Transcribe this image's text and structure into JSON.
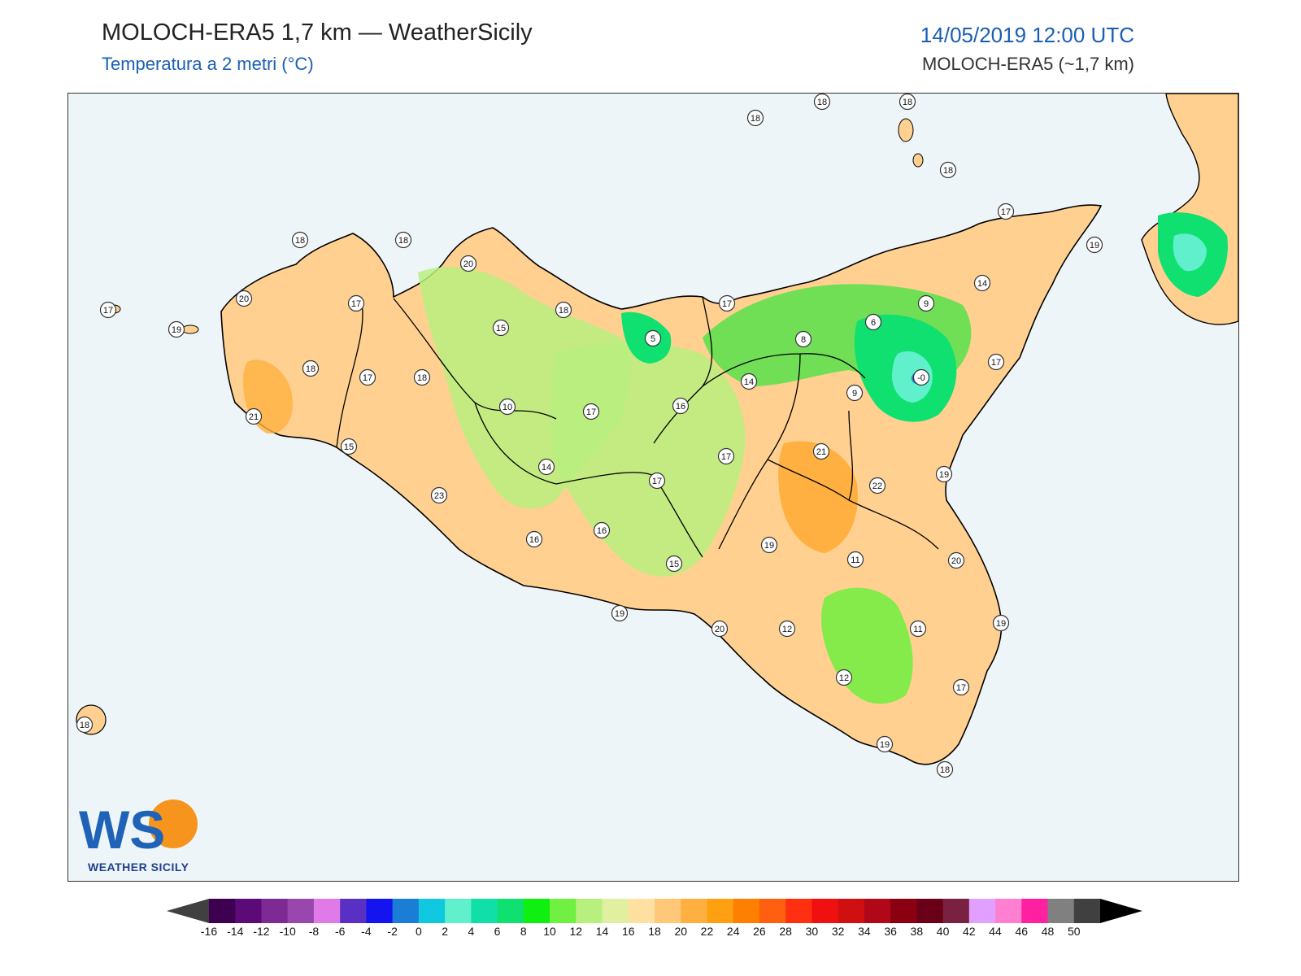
{
  "header": {
    "title": "MOLOCH-ERA5 1,7 km — WeatherSicily",
    "subtitle": "Temperatura a 2 metri (°C)",
    "datetime": "14/05/2019 12:00 UTC",
    "model": "MOLOCH-ERA5 (~1,7 km)"
  },
  "logo": {
    "letters": "WS",
    "name": "WEATHER SICILY"
  },
  "colorbar": {
    "ticks": [
      "-16",
      "-14",
      "-12",
      "-10",
      "-8",
      "-6",
      "-4",
      "-2",
      "0",
      "2",
      "4",
      "6",
      "8",
      "10",
      "12",
      "14",
      "16",
      "18",
      "20",
      "22",
      "24",
      "26",
      "28",
      "30",
      "32",
      "34",
      "36",
      "38",
      "40",
      "42",
      "44",
      "46",
      "48",
      "50"
    ],
    "colors": [
      "#3d0050",
      "#5c0a78",
      "#7d2a94",
      "#9a47ad",
      "#e07ae6",
      "#5a2fc4",
      "#1414f0",
      "#1a7ed6",
      "#10c8e0",
      "#60f0cc",
      "#10e0a8",
      "#10e070",
      "#10f010",
      "#70f040",
      "#b8f080",
      "#e0f0a0",
      "#ffe0a0",
      "#ffc878",
      "#ffb040",
      "#ffa010",
      "#ff8000",
      "#ff6010",
      "#ff3010",
      "#f01010",
      "#d01010",
      "#b00818",
      "#8a0010",
      "#6a0018",
      "#7a2040",
      "#e0a0ff",
      "#ff80d0",
      "#ff20a0",
      "#808080",
      "#404040"
    ],
    "under_color": "#404040",
    "over_color": "#000000"
  },
  "stations": [
    {
      "label": "18"
    },
    {
      "label": "18"
    },
    {
      "label": "18"
    },
    {
      "label": "18"
    },
    {
      "label": "17"
    },
    {
      "label": "19"
    },
    {
      "label": "17"
    },
    {
      "label": "19"
    },
    {
      "label": "18"
    },
    {
      "label": "18"
    },
    {
      "label": "20"
    },
    {
      "label": "20"
    },
    {
      "label": "17"
    },
    {
      "label": "18"
    },
    {
      "label": "15"
    },
    {
      "label": "17"
    },
    {
      "label": "14"
    },
    {
      "label": "9"
    },
    {
      "label": "6"
    },
    {
      "label": "8"
    },
    {
      "label": "5"
    },
    {
      "label": "17"
    },
    {
      "label": "18"
    },
    {
      "label": "17"
    },
    {
      "label": "18"
    },
    {
      "label": "21"
    },
    {
      "label": "15"
    },
    {
      "label": "10"
    },
    {
      "label": "17"
    },
    {
      "label": "16"
    },
    {
      "label": "14"
    },
    {
      "label": "-0"
    },
    {
      "label": "9"
    },
    {
      "label": "17"
    },
    {
      "label": "21"
    },
    {
      "label": "14"
    },
    {
      "label": "17"
    },
    {
      "label": "23"
    },
    {
      "label": "19"
    },
    {
      "label": "22"
    },
    {
      "label": "16"
    },
    {
      "label": "16"
    },
    {
      "label": "19"
    },
    {
      "label": "15"
    },
    {
      "label": "11"
    },
    {
      "label": "20"
    },
    {
      "label": "19"
    },
    {
      "label": "20"
    },
    {
      "label": "12"
    },
    {
      "label": "11"
    },
    {
      "label": "12"
    },
    {
      "label": "17"
    },
    {
      "label": "19"
    },
    {
      "label": "19"
    },
    {
      "label": "18"
    },
    {
      "label": "18"
    }
  ]
}
